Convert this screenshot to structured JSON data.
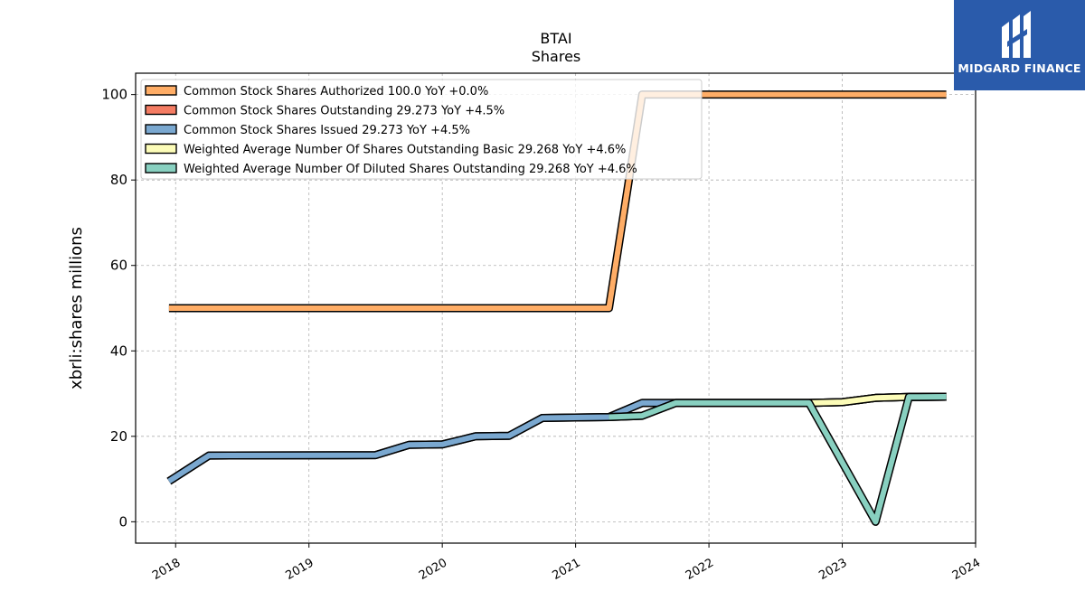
{
  "logo": {
    "text": "MIDGARD FINANCE",
    "icon": "midgard-logo-icon",
    "color": "#2a5bab"
  },
  "chart_data": {
    "type": "line",
    "title": "BTAI",
    "subtitle": "Shares",
    "ylabel": "xbrli:shares millions",
    "xlim": [
      2017.7,
      2024.0
    ],
    "ylim": [
      -5,
      105
    ],
    "yticks": [
      0,
      20,
      40,
      60,
      80,
      100
    ],
    "xticks": [
      2018,
      2019,
      2020,
      2021,
      2022,
      2023,
      2024
    ],
    "grid": true,
    "legend_position": "upper-left",
    "series": [
      {
        "name": "Common Stock Shares Authorized",
        "legend": "Common Stock Shares Authorized  100.0 YoY +0.0%",
        "color": "#ffad66",
        "x": [
          2017.95,
          2021.25,
          2021.5,
          2023.78
        ],
        "y": [
          50.0,
          50.0,
          100.0,
          100.0
        ]
      },
      {
        "name": "Common Stock Shares Outstanding",
        "legend": "Common Stock Shares Outstanding  29.273 YoY +4.5%",
        "color": "#f47c63",
        "x": [
          2017.95,
          2018.25,
          2019.5,
          2019.75,
          2020.0,
          2020.25,
          2020.5,
          2020.75,
          2021.25,
          2021.5,
          2021.75,
          2022.75,
          2023.0,
          2023.25,
          2023.5,
          2023.78
        ],
        "y": [
          9.5,
          15.5,
          15.6,
          18.0,
          18.1,
          20.0,
          20.1,
          24.3,
          24.5,
          27.8,
          27.8,
          27.8,
          28.0,
          29.0,
          29.2,
          29.273
        ]
      },
      {
        "name": "Common Stock Shares Issued",
        "legend": "Common Stock Shares Issued  29.273 YoY +4.5%",
        "color": "#7aa8d0",
        "x": [
          2017.95,
          2018.25,
          2019.5,
          2019.75,
          2020.0,
          2020.25,
          2020.5,
          2020.75,
          2021.25,
          2021.5,
          2021.75,
          2022.75,
          2023.0,
          2023.25,
          2023.5,
          2023.78
        ],
        "y": [
          9.5,
          15.5,
          15.6,
          18.0,
          18.1,
          20.0,
          20.1,
          24.3,
          24.5,
          27.8,
          27.8,
          27.8,
          28.0,
          29.0,
          29.2,
          29.273
        ]
      },
      {
        "name": "Weighted Average Number Of Shares Outstanding Basic",
        "legend": "Weighted Average Number Of Shares Outstanding Basic  29.268 YoY +4.6%",
        "color": "#fcfcb8",
        "x": [
          2021.25,
          2021.5,
          2021.75,
          2022.75,
          2023.0,
          2023.25,
          2023.5,
          2023.78
        ],
        "y": [
          24.5,
          24.8,
          27.8,
          27.8,
          28.0,
          29.0,
          29.2,
          29.268
        ]
      },
      {
        "name": "Weighted Average Number Of Diluted Shares Outstanding",
        "legend": "Weighted Average Number Of Diluted Shares Outstanding  29.268 YoY +4.6%",
        "color": "#88d0c0",
        "x": [
          2021.25,
          2021.5,
          2021.75,
          2022.75,
          2023.25,
          2023.5,
          2023.78
        ],
        "y": [
          24.5,
          24.8,
          27.8,
          27.8,
          0.0,
          29.2,
          29.268
        ]
      }
    ]
  }
}
